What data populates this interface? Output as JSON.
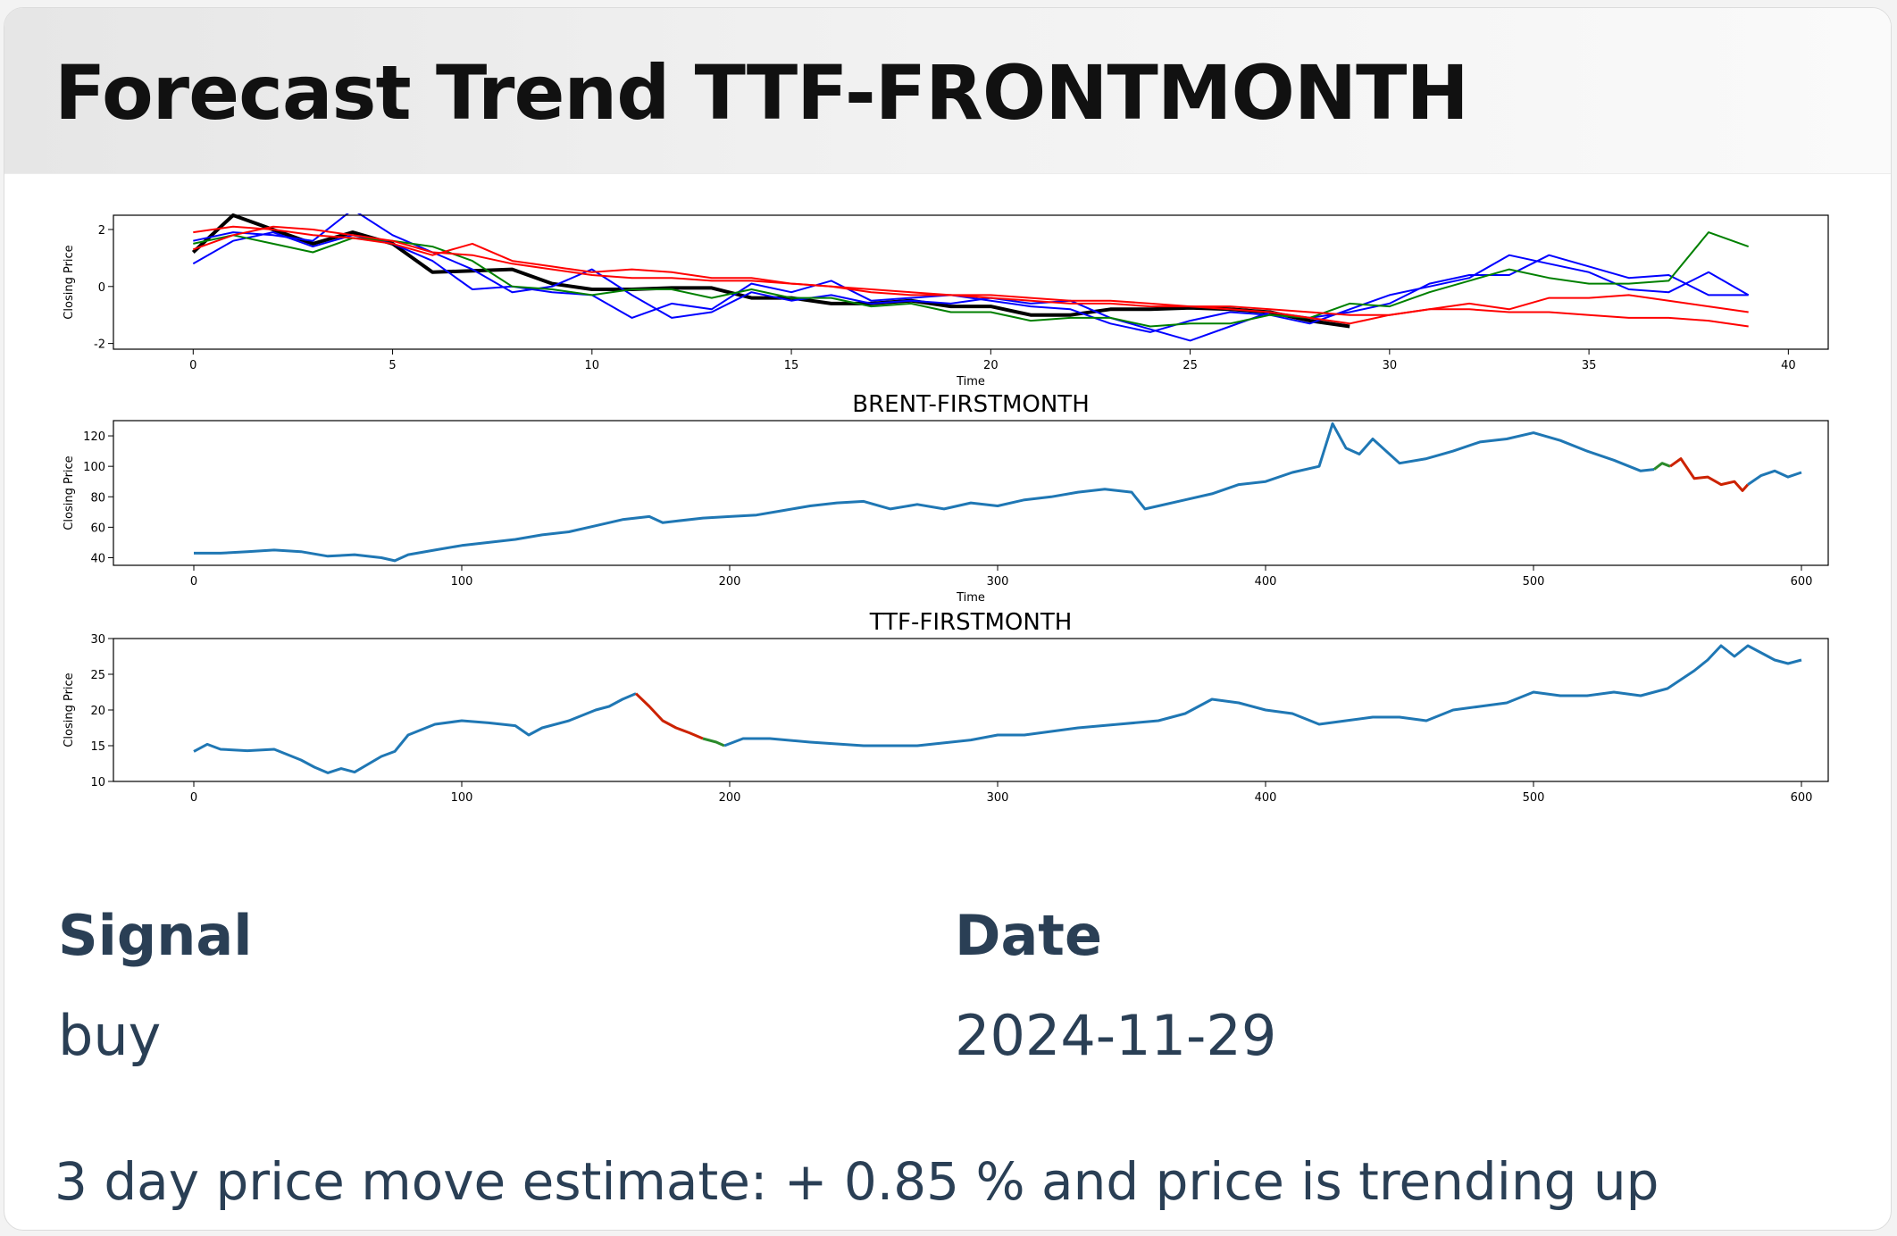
{
  "card": {
    "title": "Forecast Trend TTF-FRONTMONTH"
  },
  "fields": {
    "signal_label": "Signal",
    "signal_value": "buy",
    "date_label": "Date",
    "date_value": "2024-11-29"
  },
  "summary": "3 day price move estimate: + 0.85 % and price is trending up",
  "chart_data": [
    {
      "type": "line",
      "title": "",
      "xlabel": "Time",
      "ylabel": "Closing Price",
      "xlim": [
        -2,
        41
      ],
      "ylim": [
        -2.2,
        2.5
      ],
      "xticks": [
        0,
        5,
        10,
        15,
        20,
        25,
        30,
        35,
        40
      ],
      "yticks": [
        -2,
        0,
        2
      ],
      "series": [
        {
          "color": "#000000",
          "width": 4,
          "x": [
            0,
            1,
            2,
            3,
            4,
            5,
            6,
            7,
            8,
            9,
            10,
            11,
            12,
            13,
            14,
            15,
            16,
            17,
            18,
            19,
            20,
            21,
            22,
            23,
            24,
            25,
            26,
            27,
            28,
            29
          ],
          "values": [
            1.2,
            2.5,
            2.0,
            1.5,
            1.9,
            1.5,
            0.5,
            0.55,
            0.6,
            0.1,
            -0.1,
            -0.1,
            -0.05,
            -0.05,
            -0.4,
            -0.4,
            -0.6,
            -0.6,
            -0.5,
            -0.7,
            -0.7,
            -1.0,
            -1.0,
            -0.8,
            -0.8,
            -0.75,
            -0.8,
            -0.9,
            -1.2,
            -1.4
          ]
        },
        {
          "color": "#0000ff",
          "width": 2,
          "x": [
            0,
            1,
            2,
            3,
            4,
            5,
            6,
            7,
            8,
            9,
            10,
            11,
            12,
            13,
            14,
            15,
            16,
            17,
            18,
            19,
            20,
            21,
            22,
            23,
            24,
            25,
            26,
            27,
            28,
            29,
            30,
            31,
            32,
            33,
            34,
            35,
            36,
            37,
            38,
            39
          ],
          "values": [
            0.8,
            1.6,
            1.9,
            1.4,
            1.8,
            1.5,
            0.9,
            -0.1,
            0.0,
            -0.2,
            -0.3,
            -1.1,
            -0.6,
            -0.8,
            0.1,
            -0.2,
            0.2,
            -0.5,
            -0.4,
            -0.3,
            -0.5,
            -0.7,
            -0.8,
            -1.3,
            -1.6,
            -1.2,
            -0.9,
            -1.0,
            -1.3,
            -0.8,
            -0.3,
            0.0,
            0.3,
            1.1,
            0.8,
            0.5,
            -0.1,
            -0.2,
            0.5,
            -0.3
          ]
        },
        {
          "color": "#0000ff",
          "width": 2,
          "x": [
            0,
            1,
            2,
            3,
            4,
            5,
            6,
            7,
            8,
            9,
            10,
            11,
            12,
            13,
            14,
            15,
            16,
            17,
            18,
            19,
            20,
            21,
            22,
            23,
            24,
            25,
            26,
            27,
            28,
            29,
            30,
            31,
            32,
            33,
            34,
            35,
            36,
            37,
            38,
            39
          ],
          "values": [
            1.6,
            1.9,
            1.8,
            1.6,
            2.7,
            1.8,
            1.2,
            0.6,
            -0.2,
            0.0,
            0.6,
            -0.3,
            -1.1,
            -0.9,
            -0.2,
            -0.5,
            -0.3,
            -0.6,
            -0.5,
            -0.6,
            -0.4,
            -0.6,
            -0.5,
            -1.1,
            -1.5,
            -1.9,
            -1.4,
            -0.9,
            -1.1,
            -0.9,
            -0.6,
            0.1,
            0.4,
            0.4,
            1.1,
            0.7,
            0.3,
            0.4,
            -0.3,
            -0.3
          ]
        },
        {
          "color": "#008000",
          "width": 2,
          "x": [
            0,
            1,
            2,
            3,
            4,
            5,
            6,
            7,
            8,
            9,
            10,
            11,
            12,
            13,
            14,
            15,
            16,
            17,
            18,
            19,
            20,
            21,
            22,
            23,
            24,
            25,
            26,
            27,
            28,
            29,
            30,
            31,
            32,
            33,
            34,
            35,
            36,
            37,
            38,
            39
          ],
          "values": [
            1.5,
            1.8,
            1.5,
            1.2,
            1.7,
            1.6,
            1.4,
            0.9,
            0.0,
            -0.1,
            -0.3,
            -0.1,
            -0.1,
            -0.4,
            -0.1,
            -0.4,
            -0.4,
            -0.7,
            -0.6,
            -0.9,
            -0.9,
            -1.2,
            -1.1,
            -1.1,
            -1.4,
            -1.3,
            -1.3,
            -1.0,
            -1.1,
            -0.6,
            -0.7,
            -0.2,
            0.2,
            0.6,
            0.3,
            0.1,
            0.1,
            0.2,
            1.9,
            1.4
          ]
        },
        {
          "color": "#ff0000",
          "width": 2,
          "x": [
            0,
            1,
            2,
            3,
            4,
            5,
            6,
            7,
            8,
            9,
            10,
            11,
            12,
            13,
            14,
            15,
            16,
            17,
            18,
            19,
            20,
            21,
            22,
            23,
            24,
            25,
            26,
            27,
            28,
            29,
            30,
            31,
            32,
            33,
            34,
            35,
            36,
            37,
            38,
            39
          ],
          "values": [
            1.9,
            2.1,
            2.0,
            1.8,
            1.7,
            1.5,
            1.1,
            1.5,
            0.9,
            0.7,
            0.5,
            0.6,
            0.5,
            0.3,
            0.3,
            0.1,
            0.0,
            -0.2,
            -0.3,
            -0.3,
            -0.4,
            -0.5,
            -0.6,
            -0.6,
            -0.7,
            -0.7,
            -0.8,
            -0.9,
            -1.1,
            -1.3,
            -1.0,
            -0.8,
            -0.6,
            -0.8,
            -0.4,
            -0.4,
            -0.3,
            -0.5,
            -0.7,
            -0.9
          ]
        },
        {
          "color": "#ff0000",
          "width": 2,
          "x": [
            0,
            1,
            2,
            3,
            4,
            5,
            6,
            7,
            8,
            9,
            10,
            11,
            12,
            13,
            14,
            15,
            16,
            17,
            18,
            19,
            20,
            21,
            22,
            23,
            24,
            25,
            26,
            27,
            28,
            29,
            30,
            31,
            32,
            33,
            34,
            35,
            36,
            37,
            38,
            39
          ],
          "values": [
            1.3,
            1.8,
            2.1,
            2.0,
            1.8,
            1.6,
            1.2,
            1.1,
            0.8,
            0.6,
            0.4,
            0.3,
            0.3,
            0.2,
            0.2,
            0.1,
            0.0,
            -0.1,
            -0.2,
            -0.3,
            -0.3,
            -0.4,
            -0.5,
            -0.5,
            -0.6,
            -0.7,
            -0.7,
            -0.8,
            -0.9,
            -1.0,
            -1.0,
            -0.8,
            -0.8,
            -0.9,
            -0.9,
            -1.0,
            -1.1,
            -1.1,
            -1.2,
            -1.4
          ]
        }
      ]
    },
    {
      "type": "line",
      "title": "BRENT-FIRSTMONTH",
      "xlabel": "Time",
      "ylabel": "Closing Price",
      "xlim": [
        -30,
        610
      ],
      "ylim": [
        35,
        130
      ],
      "xticks": [
        0,
        100,
        200,
        300,
        400,
        500,
        600
      ],
      "yticks": [
        40,
        60,
        80,
        100,
        120
      ],
      "series": [
        {
          "color": "#1f77b4",
          "width": 3,
          "x": [
            0,
            10,
            20,
            30,
            40,
            50,
            60,
            70,
            75,
            80,
            90,
            100,
            110,
            120,
            130,
            140,
            150,
            160,
            170,
            175,
            180,
            190,
            200,
            210,
            220,
            230,
            240,
            250,
            260,
            270,
            280,
            290,
            300,
            310,
            320,
            330,
            340,
            350,
            355,
            360,
            370,
            380,
            390,
            400,
            410,
            420,
            425,
            430,
            435,
            440,
            450,
            460,
            470,
            480,
            490,
            500,
            510,
            520,
            530,
            540,
            545
          ],
          "values": [
            43,
            43,
            44,
            45,
            44,
            41,
            42,
            40,
            38,
            42,
            45,
            48,
            50,
            52,
            55,
            57,
            61,
            65,
            67,
            63,
            64,
            66,
            67,
            68,
            71,
            74,
            76,
            77,
            72,
            75,
            72,
            76,
            74,
            78,
            80,
            83,
            85,
            83,
            72,
            74,
            78,
            82,
            88,
            90,
            96,
            100,
            128,
            112,
            108,
            118,
            102,
            105,
            110,
            116,
            118,
            122,
            117,
            110,
            104,
            97,
            98
          ]
        },
        {
          "color": "#2a8a2a",
          "width": 3,
          "x": [
            545,
            548,
            551
          ],
          "values": [
            98,
            102,
            100
          ]
        },
        {
          "color": "#cc2200",
          "width": 3,
          "x": [
            551,
            555,
            560,
            565,
            570,
            575,
            578,
            580
          ],
          "values": [
            100,
            105,
            92,
            93,
            88,
            90,
            84,
            88
          ]
        },
        {
          "color": "#1f77b4",
          "width": 3,
          "x": [
            580,
            585,
            590,
            595,
            600
          ],
          "values": [
            88,
            94,
            97,
            93,
            96
          ]
        }
      ]
    },
    {
      "type": "line",
      "title": "TTF-FIRSTMONTH",
      "xlabel": "",
      "ylabel": "Closing Price",
      "xlim": [
        -30,
        610
      ],
      "ylim": [
        10,
        30
      ],
      "xticks": [
        0,
        100,
        200,
        300,
        400,
        500,
        600
      ],
      "yticks": [
        10,
        15,
        20,
        25,
        30
      ],
      "series": [
        {
          "color": "#1f77b4",
          "width": 3,
          "x": [
            0,
            5,
            10,
            20,
            30,
            40,
            45,
            50,
            55,
            60,
            70,
            75,
            80,
            90,
            100,
            110,
            120,
            125,
            130,
            140,
            150,
            155,
            160,
            165
          ],
          "values": [
            14.2,
            15.2,
            14.5,
            14.3,
            14.5,
            13.0,
            12.0,
            11.2,
            11.8,
            11.3,
            13.5,
            14.2,
            16.5,
            18.0,
            18.5,
            18.2,
            17.8,
            16.5,
            17.5,
            18.5,
            20.0,
            20.5,
            21.5,
            22.3
          ]
        },
        {
          "color": "#cc2200",
          "width": 3,
          "x": [
            165,
            170,
            175,
            180,
            185,
            190
          ],
          "values": [
            22.3,
            20.5,
            18.5,
            17.5,
            16.8,
            16.0
          ]
        },
        {
          "color": "#2a8a2a",
          "width": 3,
          "x": [
            190,
            195,
            198
          ],
          "values": [
            16.0,
            15.5,
            15.0
          ]
        },
        {
          "color": "#1f77b4",
          "width": 3,
          "x": [
            198,
            205,
            215,
            230,
            250,
            270,
            290,
            300,
            310,
            320,
            330,
            345,
            360,
            370,
            375,
            380,
            390,
            400,
            410,
            420,
            430,
            440,
            450,
            460,
            470,
            480,
            490,
            500,
            510,
            520,
            530,
            540,
            550,
            560,
            565,
            570,
            575,
            580,
            585,
            590,
            595,
            600
          ],
          "values": [
            15.0,
            16.0,
            16.0,
            15.5,
            15.0,
            15.0,
            15.8,
            16.5,
            16.5,
            17.0,
            17.5,
            18.0,
            18.5,
            19.5,
            20.5,
            21.5,
            21.0,
            20.0,
            19.5,
            18.0,
            18.5,
            19.0,
            19.0,
            18.5,
            20.0,
            20.5,
            21.0,
            22.5,
            22.0,
            22.0,
            22.5,
            22.0,
            23.0,
            25.5,
            27.0,
            29.0,
            27.5,
            29.0,
            28.0,
            27.0,
            26.5,
            27.0
          ]
        }
      ]
    }
  ]
}
